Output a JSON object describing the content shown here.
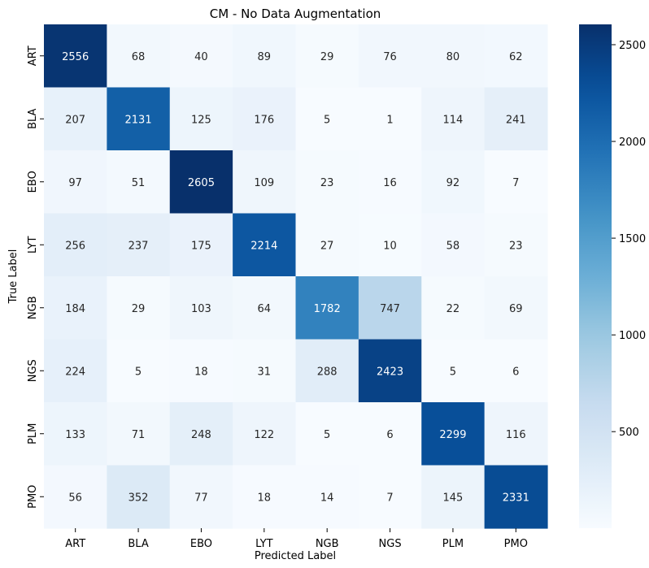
{
  "chart_data": {
    "type": "heatmap",
    "title": "CM - No Data Augmentation",
    "xlabel": "Predicted Label",
    "ylabel": "True Label",
    "x_categories": [
      "ART",
      "BLA",
      "EBO",
      "LYT",
      "NGB",
      "NGS",
      "PLM",
      "PMO"
    ],
    "y_categories": [
      "ART",
      "BLA",
      "EBO",
      "LYT",
      "NGB",
      "NGS",
      "PLM",
      "PMO"
    ],
    "values": [
      [
        2556,
        68,
        40,
        89,
        29,
        76,
        80,
        62
      ],
      [
        207,
        2131,
        125,
        176,
        5,
        1,
        114,
        241
      ],
      [
        97,
        51,
        2605,
        109,
        23,
        16,
        92,
        7
      ],
      [
        256,
        237,
        175,
        2214,
        27,
        10,
        58,
        23
      ],
      [
        184,
        29,
        103,
        64,
        1782,
        747,
        22,
        69
      ],
      [
        224,
        5,
        18,
        31,
        288,
        2423,
        5,
        6
      ],
      [
        133,
        71,
        248,
        122,
        5,
        6,
        2299,
        116
      ],
      [
        56,
        352,
        77,
        18,
        14,
        7,
        145,
        2331
      ]
    ],
    "colorbar": {
      "colormap": "Blues",
      "range": [
        1,
        2605
      ],
      "ticks": [
        500,
        1000,
        1500,
        2000,
        2500
      ]
    }
  }
}
